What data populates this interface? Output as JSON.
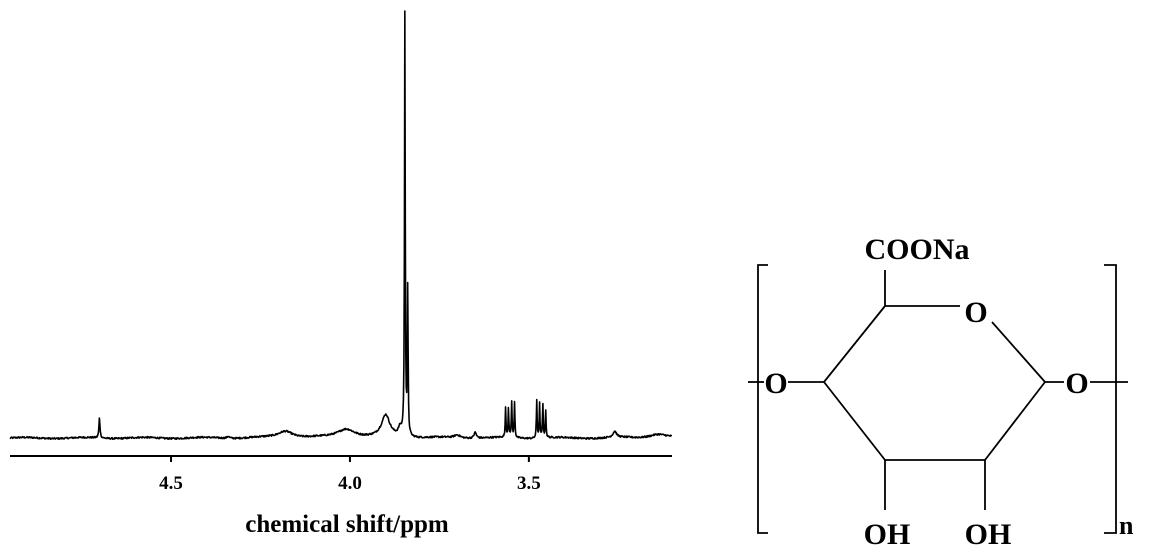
{
  "chart_data": {
    "type": "line",
    "xlabel": "chemical shift/ppm",
    "ylabel": "",
    "xlim": [
      4.95,
      3.1
    ],
    "x_reversed": true,
    "x_ticks": [
      4.5,
      4.0,
      3.5
    ],
    "x_tick_labels": [
      "4.5",
      "4.0",
      "3.5"
    ],
    "grid": false,
    "baseline": 0,
    "features": [
      {
        "x": 4.7,
        "height": 20,
        "width": 0.0018
      },
      {
        "x": 4.34,
        "height": 2,
        "width": 0.004
      },
      {
        "x": 4.18,
        "height": 7,
        "width": 0.025
      },
      {
        "x": 4.01,
        "height": 9,
        "width": 0.03
      },
      {
        "x": 3.9,
        "height": 22,
        "width": 0.014
      },
      {
        "x": 3.86,
        "height": 8,
        "width": 0.006
      },
      {
        "x": 3.8465,
        "height": 425,
        "width": 0.0012
      },
      {
        "x": 3.8385,
        "height": 147,
        "width": 0.0012
      },
      {
        "x": 3.7,
        "height": 3,
        "width": 0.01
      },
      {
        "x": 3.65,
        "height": 6,
        "width": 0.004
      },
      {
        "x": 3.565,
        "height": 30,
        "width": 0.0012
      },
      {
        "x": 3.557,
        "height": 30,
        "width": 0.0012
      },
      {
        "x": 3.548,
        "height": 36,
        "width": 0.0012
      },
      {
        "x": 3.54,
        "height": 36,
        "width": 0.0012
      },
      {
        "x": 3.478,
        "height": 38,
        "width": 0.0012
      },
      {
        "x": 3.47,
        "height": 34,
        "width": 0.0012
      },
      {
        "x": 3.461,
        "height": 34,
        "width": 0.0012
      },
      {
        "x": 3.453,
        "height": 28,
        "width": 0.0012
      },
      {
        "x": 3.26,
        "height": 6,
        "width": 0.006
      },
      {
        "x": 3.14,
        "height": 4,
        "width": 0.03
      }
    ]
  },
  "structure": {
    "substituent_top": "COONa",
    "ring_oxygen": "O",
    "left_linker": "O",
    "right_linker": "O",
    "hydroxyl_1": "OH",
    "hydroxyl_2": "OH",
    "repeat_subscript": "n"
  }
}
